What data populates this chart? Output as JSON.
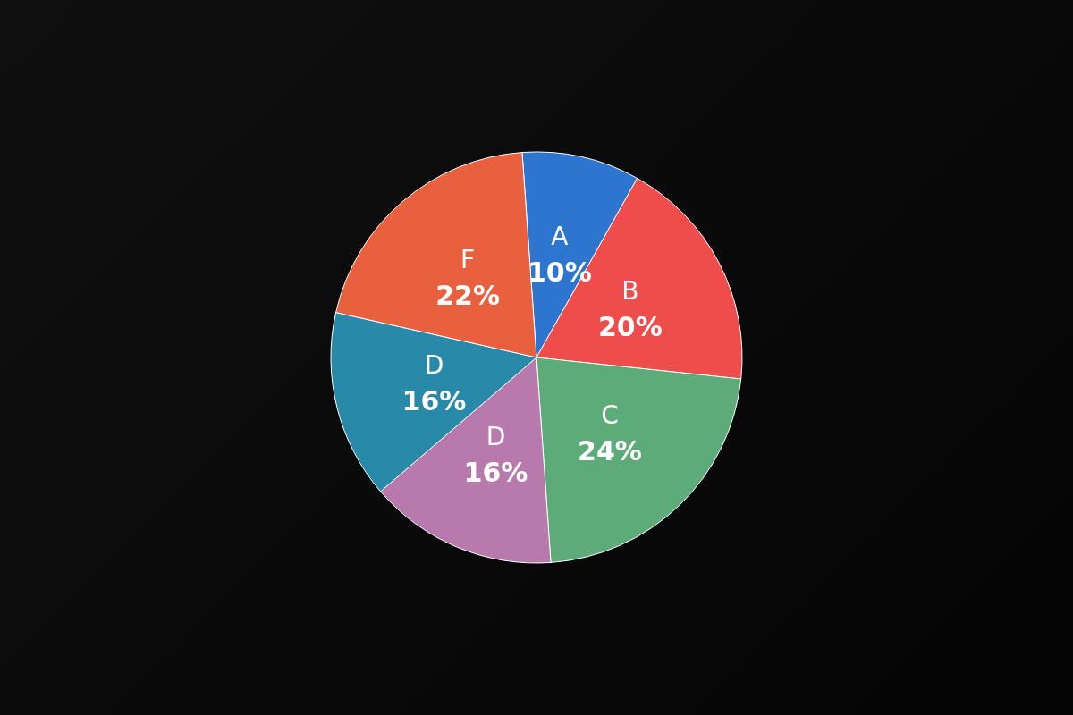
{
  "chart_data": {
    "type": "pie",
    "categories": [
      "A",
      "B",
      "C",
      "D",
      "D",
      "F"
    ],
    "values": [
      10,
      20,
      24,
      16,
      16,
      22
    ],
    "value_labels": [
      "10%",
      "20%",
      "24%",
      "16%",
      "16%",
      "22%"
    ],
    "colors": [
      "#2e75cf",
      "#ef4c4c",
      "#5dab79",
      "#b879ad",
      "#2889a8",
      "#e9603f"
    ]
  }
}
